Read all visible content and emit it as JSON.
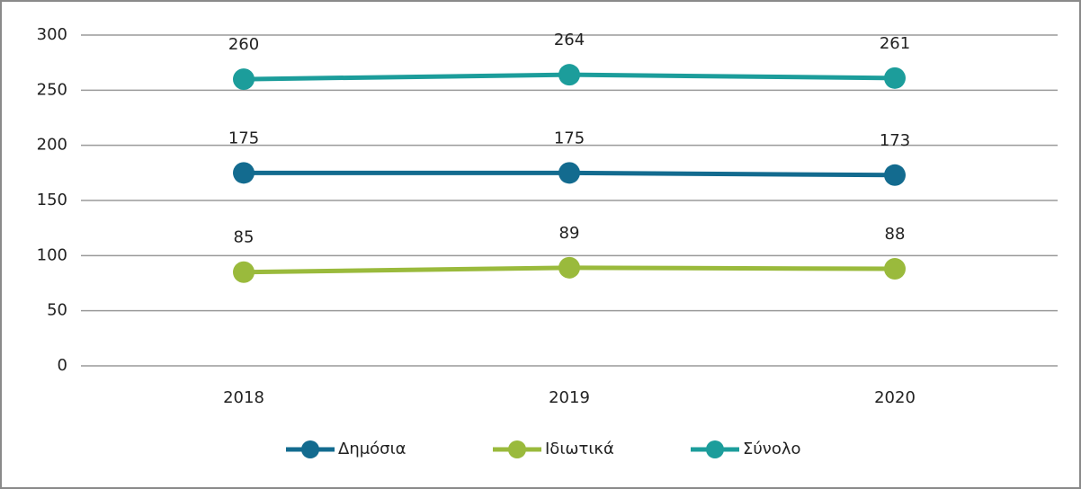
{
  "chart_data": {
    "type": "line",
    "categories": [
      "2018",
      "2019",
      "2020"
    ],
    "series": [
      {
        "name": "Δημόσια",
        "color": "#136b8f",
        "values": [
          175,
          175,
          173
        ]
      },
      {
        "name": "Ιδιωτικά",
        "color": "#9aba3c",
        "values": [
          85,
          89,
          88
        ]
      },
      {
        "name": "Σύνολο",
        "color": "#1c9d9b",
        "values": [
          260,
          264,
          261
        ]
      }
    ],
    "ylim": [
      0,
      300
    ],
    "yticks": [
      0,
      50,
      100,
      150,
      200,
      250,
      300
    ],
    "grid": true,
    "legend": "bottom"
  }
}
